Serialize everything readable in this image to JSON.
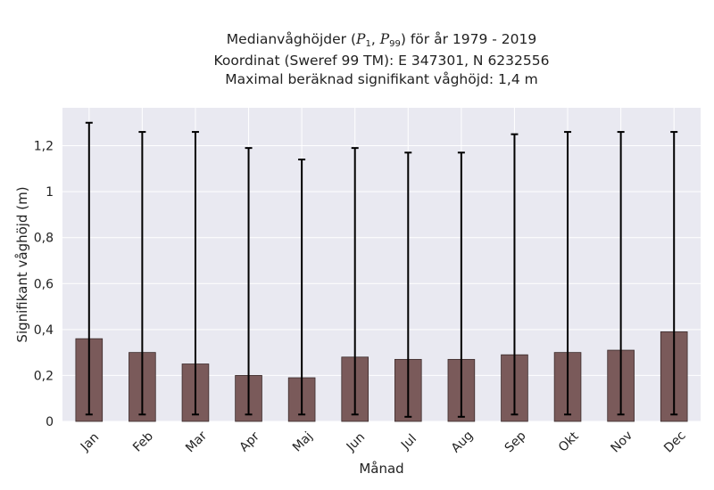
{
  "title": {
    "line1_prefix": "Medianvåghöjder (",
    "p_symbol": "P",
    "p1_sub": "1",
    "sep": ", ",
    "p99_sub": "99",
    "line1_suffix": ") för år 1979 - 2019",
    "line2": "Koordinat (Sweref 99 TM): E 347301, N 6232556",
    "line3": "Maximal beräknad signifikant våghöjd: 1,4 m"
  },
  "colors": {
    "plot_bg": "#e9e9f1",
    "grid": "#ffffff",
    "bar_fill": "#7a5a5a",
    "bar_edge": "#3b2b2b",
    "error": "#000000"
  },
  "chart_data": {
    "type": "bar",
    "title": "Medianvåghöjder (P1, P99) för år 1979 - 2019 / Koordinat (Sweref 99 TM): E 347301, N 6232556 / Maximal beräknad signifikant våghöjd: 1,4 m",
    "xlabel": "Månad",
    "ylabel": "Signifikant våghöjd (m)",
    "categories": [
      "Jan",
      "Feb",
      "Mar",
      "Apr",
      "Maj",
      "Jun",
      "Jul",
      "Aug",
      "Sep",
      "Okt",
      "Nov",
      "Dec"
    ],
    "values": [
      0.36,
      0.3,
      0.25,
      0.2,
      0.19,
      0.28,
      0.27,
      0.27,
      0.29,
      0.3,
      0.31,
      0.39
    ],
    "p1": [
      0.03,
      0.03,
      0.03,
      0.03,
      0.03,
      0.03,
      0.02,
      0.02,
      0.03,
      0.03,
      0.03,
      0.03
    ],
    "p99": [
      1.3,
      1.26,
      1.26,
      1.19,
      1.14,
      1.19,
      1.17,
      1.17,
      1.25,
      1.26,
      1.26,
      1.26
    ],
    "yticks": [
      0,
      0.2,
      0.4,
      0.6,
      0.8,
      1,
      1.2
    ],
    "ytick_labels": [
      "0",
      "0,2",
      "0,4",
      "0,6",
      "0,8",
      "1",
      "1,2"
    ],
    "ylim": [
      0,
      1.365
    ],
    "grid": true,
    "legend": "none"
  }
}
